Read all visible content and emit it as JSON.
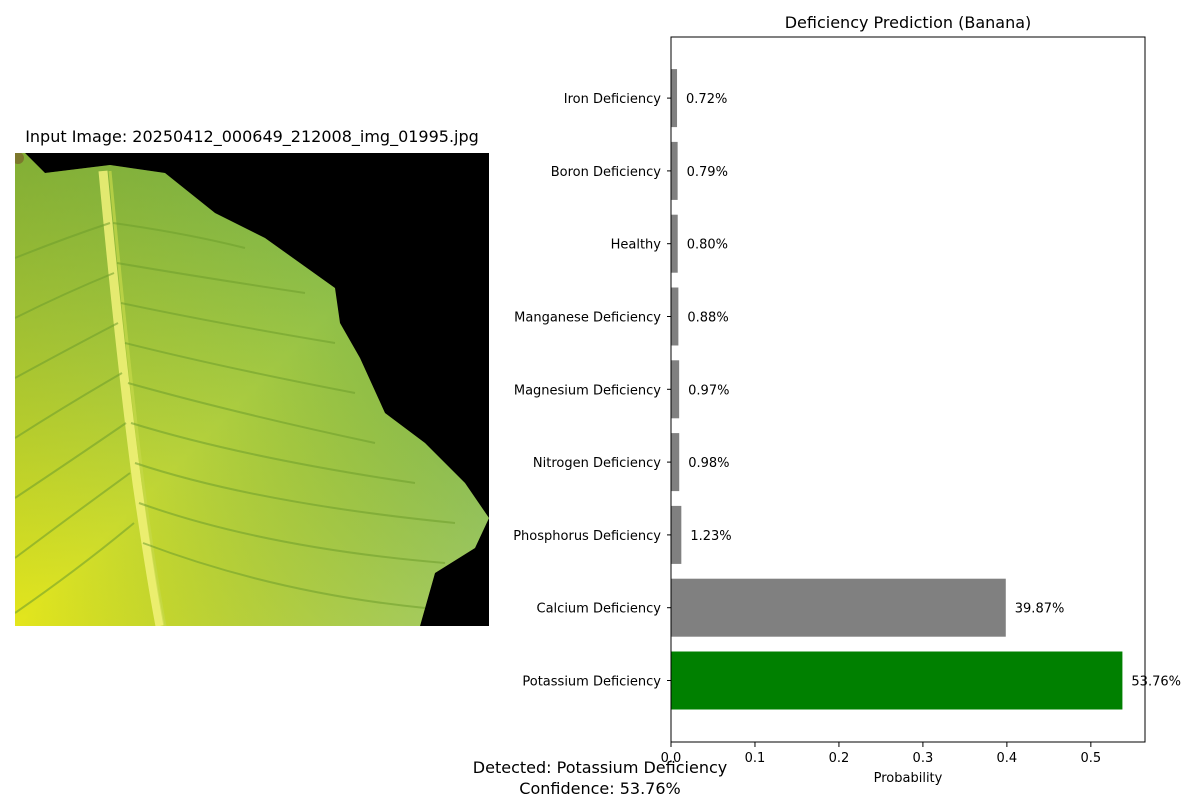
{
  "left_panel": {
    "title": "Input Image: 20250412_000649_212008_img_01995.jpg"
  },
  "footer": {
    "detected": "Detected: Potassium Deficiency",
    "confidence": "Confidence: 53.76%"
  },
  "colors": {
    "highlight": "#008000",
    "default_bar": "#808080"
  },
  "chart_data": {
    "type": "bar",
    "orientation": "horizontal",
    "title": "Deficiency Prediction (Banana)",
    "xlabel": "Probability",
    "ylabel": "",
    "xlim": [
      0,
      0.5645
    ],
    "xticks": [
      0,
      0.1,
      0.2,
      0.3,
      0.4,
      0.5
    ],
    "xtick_labels": [
      "0.0",
      "0.1",
      "0.2",
      "0.3",
      "0.4",
      "0.5"
    ],
    "grid": false,
    "categories": [
      "Potassium Deficiency",
      "Calcium Deficiency",
      "Phosphorus Deficiency",
      "Nitrogen Deficiency",
      "Magnesium Deficiency",
      "Manganese Deficiency",
      "Healthy",
      "Boron Deficiency",
      "Iron Deficiency"
    ],
    "values": [
      0.5376,
      0.3987,
      0.0123,
      0.0098,
      0.0097,
      0.0088,
      0.008,
      0.0079,
      0.0072
    ],
    "data_labels": [
      "53.76%",
      "39.87%",
      "1.23%",
      "0.98%",
      "0.97%",
      "0.88%",
      "0.80%",
      "0.79%",
      "0.72%"
    ],
    "highlight_index": 0
  }
}
